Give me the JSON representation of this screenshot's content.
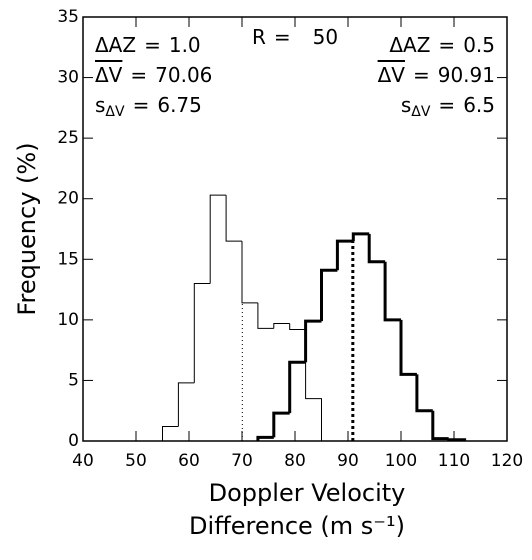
{
  "chart_data": {
    "type": "histogram",
    "x_label": [
      "Doppler Velocity",
      "Difference (m s⁻¹)"
    ],
    "y_label": "Frequency (%)",
    "xlim": [
      40,
      120
    ],
    "xticks": [
      40,
      50,
      60,
      70,
      80,
      90,
      100,
      110,
      120
    ],
    "ylim": [
      0,
      35
    ],
    "yticks": [
      0,
      5,
      10,
      15,
      20,
      25,
      30,
      35
    ],
    "equals_sign": "=",
    "range_annotation": {
      "name": "R",
      "value": 50
    },
    "series": [
      {
        "color": "#000000",
        "line_width": 1,
        "bins": [
          55,
          58,
          61,
          64,
          67,
          70,
          73,
          76,
          79,
          82,
          85
        ],
        "counts": [
          1.2,
          4.8,
          13.0,
          20.3,
          16.5,
          11.4,
          9.3,
          9.7,
          9.2,
          3.5
        ],
        "delta_az": {
          "name": "ΔAZ",
          "value": {
            "value": 1.0,
            "label": "1.0"
          }
        },
        "mean": {
          "name": "ΔV",
          "value": 70.06
        },
        "std": {
          "name": "s",
          "sub": "ΔV",
          "value": 6.75
        }
      },
      {
        "color": "#000000",
        "line_width": 3,
        "bins": [
          73,
          76,
          79,
          82,
          85,
          88,
          91,
          94,
          97,
          100,
          103,
          106,
          109,
          112
        ],
        "counts": [
          0.3,
          2.3,
          6.5,
          9.9,
          14.1,
          16.5,
          17.1,
          14.8,
          10.0,
          5.5,
          2.5,
          0.2,
          0.1
        ],
        "delta_az": {
          "name": "ΔAZ",
          "value": {
            "value": 0.5,
            "label": "0.5"
          }
        },
        "mean": {
          "name": "ΔV",
          "value": 90.91
        },
        "std": {
          "name": "s",
          "sub": "ΔV",
          "value": 6.5
        }
      }
    ]
  }
}
